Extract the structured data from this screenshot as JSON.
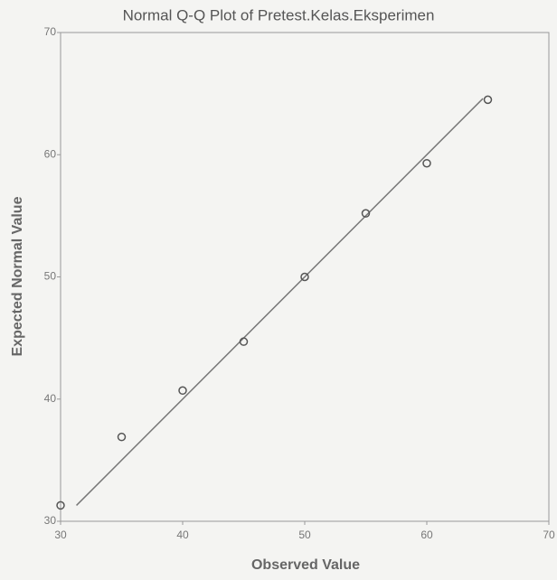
{
  "chart_data": {
    "type": "scatter",
    "title": "Normal Q-Q Plot of Pretest.Kelas.Eksperimen",
    "x_label": "Observed Value",
    "y_label": "Expected Normal Value",
    "x": [
      30,
      35,
      40,
      45,
      50,
      55,
      60,
      65
    ],
    "values": [
      31.3,
      36.9,
      40.7,
      44.7,
      50.0,
      55.2,
      59.3,
      64.5
    ],
    "color": "#555555",
    "reference_line": {
      "x": [
        31.3,
        64.6
      ],
      "y": [
        31.3,
        64.6
      ],
      "color": "#777777"
    },
    "xlim": [
      30,
      70
    ],
    "ylim": [
      30,
      70
    ],
    "xticks": [
      30,
      40,
      50,
      60,
      70
    ],
    "yticks": [
      30,
      40,
      50,
      60,
      70
    ]
  }
}
